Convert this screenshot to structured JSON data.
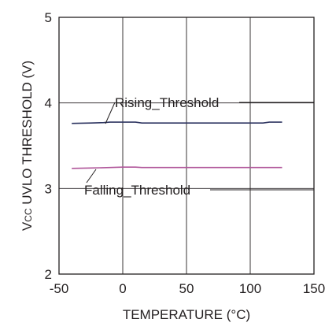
{
  "chart_data": {
    "type": "line",
    "xlabel": "TEMPERATURE (°C)",
    "ylabel_prefix": "V",
    "ylabel_subscript": "CC",
    "ylabel_rest": " UVLO THRESHOLD (V)",
    "xlim": [
      -50,
      150
    ],
    "ylim": [
      2,
      5
    ],
    "xticks": [
      -50,
      0,
      50,
      100,
      150
    ],
    "yticks": [
      2,
      3,
      4,
      5
    ],
    "grid": true,
    "series": [
      {
        "name": "Rising_Threshold",
        "color": "#2e3561",
        "x": [
          -40,
          -25,
          -15,
          -10,
          0,
          10,
          15,
          25,
          50,
          75,
          100,
          110,
          115,
          125
        ],
        "y": [
          3.76,
          3.765,
          3.77,
          3.775,
          3.775,
          3.775,
          3.765,
          3.765,
          3.765,
          3.765,
          3.765,
          3.765,
          3.775,
          3.775
        ]
      },
      {
        "name": "Falling_Threshold",
        "color": "#b0569a",
        "x": [
          -40,
          -25,
          -10,
          0,
          10,
          15,
          25,
          50,
          75,
          100,
          125
        ],
        "y": [
          3.235,
          3.24,
          3.245,
          3.25,
          3.25,
          3.245,
          3.245,
          3.245,
          3.245,
          3.245,
          3.245
        ]
      }
    ],
    "annotations": [
      {
        "text": "Rising_Threshold",
        "series": "Rising_Threshold"
      },
      {
        "text": "Falling_Threshold",
        "series": "Falling_Threshold"
      }
    ],
    "colors": {
      "axis": "#231f20",
      "grid": "#231f20"
    }
  }
}
